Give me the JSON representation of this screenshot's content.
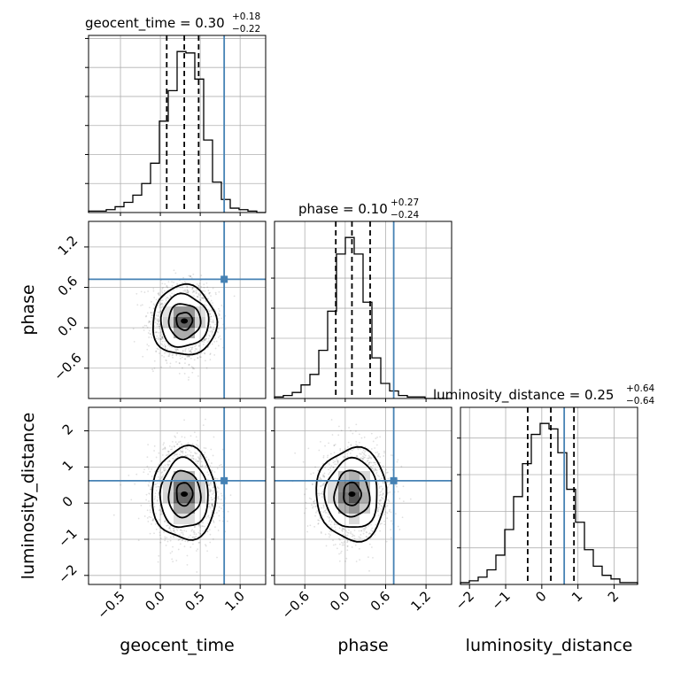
{
  "chart_data": {
    "type": "corner",
    "parameters": [
      "geocent_time",
      "phase",
      "luminosity_distance"
    ],
    "truth_color": "#4682b4",
    "axis_labels": {
      "geocent_time": "geocent_time",
      "phase": "phase",
      "luminosity_distance": "luminosity_distance"
    },
    "titles": [
      {
        "param": "geocent_time",
        "text": "geocent_time = 0.30",
        "plus": "+0.18",
        "minus": "−0.22"
      },
      {
        "param": "phase",
        "text": "phase = 0.10",
        "plus": "+0.27",
        "minus": "−0.24"
      },
      {
        "param": "luminosity_distance",
        "text": "luminosity_distance = 0.25",
        "plus": "+0.64",
        "minus": "−0.64"
      }
    ],
    "ranges": {
      "geocent_time": [
        -0.9,
        1.32
      ],
      "phase": [
        -1.05,
        1.58
      ],
      "luminosity_distance": [
        -2.25,
        2.65
      ]
    },
    "truths": {
      "geocent_time": 0.8,
      "phase": 0.72,
      "luminosity_distance": 0.62
    },
    "quantiles": {
      "geocent_time": [
        0.08,
        0.3,
        0.48
      ],
      "phase": [
        -0.14,
        0.1,
        0.37
      ],
      "luminosity_distance": [
        -0.39,
        0.25,
        0.89
      ]
    },
    "ticks": {
      "geocent_time": {
        "values": [
          -0.5,
          0.0,
          0.5,
          1.0
        ],
        "labels": [
          "−0.5",
          "0.0",
          "0.5",
          "1.0"
        ]
      },
      "phase": {
        "values": [
          -0.6,
          0.0,
          0.6,
          1.2
        ],
        "labels": [
          "−0.6",
          "0.0",
          "0.6",
          "1.2"
        ]
      },
      "luminosity_distance": {
        "values": [
          -2,
          -1,
          0,
          1,
          2
        ],
        "labels": [
          "−2",
          "−1",
          "0",
          "1",
          "2"
        ]
      }
    },
    "histograms": {
      "geocent_time": {
        "edges": [
          -0.9,
          -0.789,
          -0.678,
          -0.567,
          -0.456,
          -0.345,
          -0.234,
          -0.123,
          -0.012,
          0.099,
          0.21,
          0.321,
          0.432,
          0.543,
          0.654,
          0.765,
          0.876,
          0.987,
          1.098,
          1.209,
          1.32
        ],
        "counts": [
          1,
          1,
          2,
          4,
          7,
          12,
          20,
          34,
          63,
          84,
          111,
          110,
          92,
          50,
          21,
          9,
          3,
          2,
          1,
          0
        ]
      },
      "phase": {
        "edges": [
          -1.05,
          -0.9185,
          -0.787,
          -0.6555,
          -0.524,
          -0.3925,
          -0.261,
          -0.1295,
          0.002,
          0.1335,
          0.265,
          0.3965,
          0.528,
          0.6595,
          0.791,
          0.9225,
          1.054,
          1.1855,
          1.317,
          1.4485,
          1.58
        ],
        "counts": [
          1,
          2,
          4,
          9,
          16,
          32,
          58,
          96,
          107,
          96,
          64,
          27,
          10,
          5,
          2,
          1,
          1,
          0,
          0,
          0
        ]
      },
      "luminosity_distance": {
        "edges": [
          -2.25,
          -2.005,
          -1.76,
          -1.515,
          -1.27,
          -1.025,
          -0.78,
          -0.535,
          -0.29,
          -0.045,
          0.2,
          0.445,
          0.69,
          0.935,
          1.18,
          1.425,
          1.67,
          1.915,
          2.16,
          2.405,
          2.65
        ],
        "counts": [
          1,
          2,
          4,
          8,
          16,
          30,
          48,
          66,
          82,
          88,
          85,
          72,
          52,
          34,
          19,
          10,
          5,
          3,
          1,
          1
        ]
      }
    },
    "posterior_stats": {
      "mean": {
        "geocent_time": 0.3,
        "phase": 0.1,
        "luminosity_distance": 0.25
      },
      "sd": {
        "geocent_time": 0.2,
        "phase": 0.26,
        "luminosity_distance": 0.64
      }
    },
    "contour_levels_sigma": [
      0.5,
      1.0,
      1.5,
      2.0
    ],
    "grid": true
  }
}
